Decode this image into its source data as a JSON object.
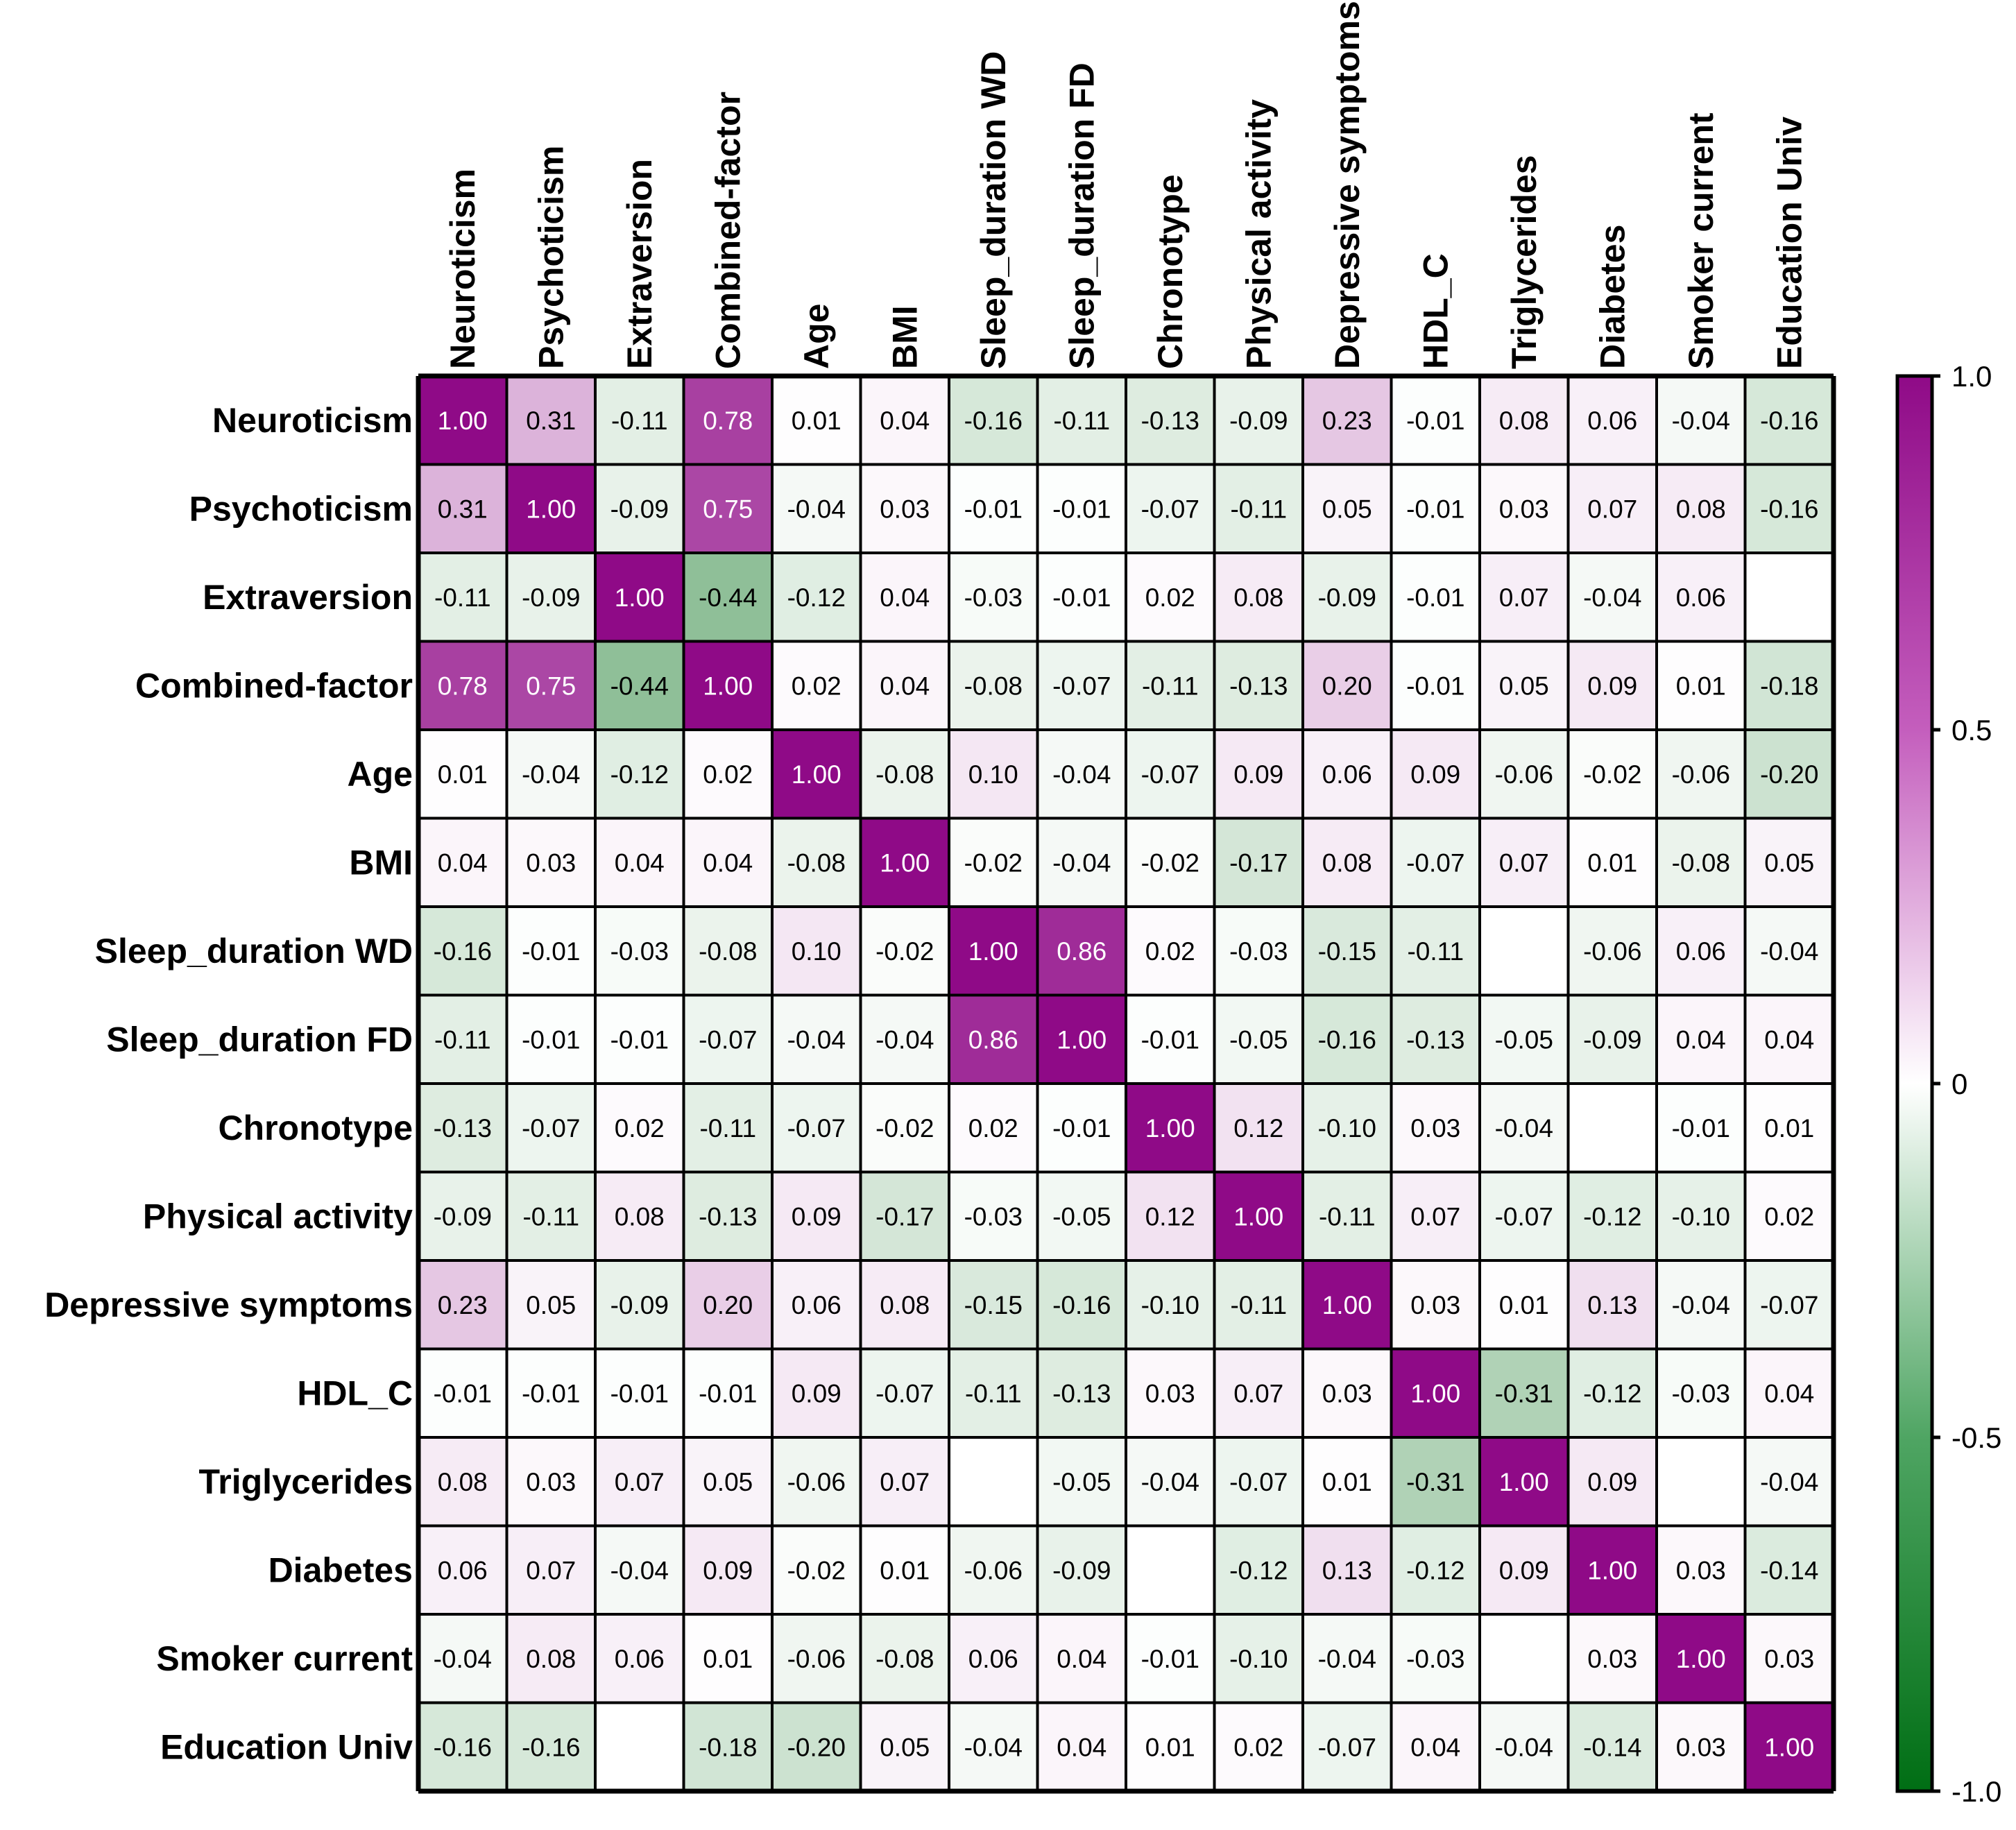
{
  "chart_data": {
    "type": "heatmap",
    "title": "",
    "variables": [
      "Neuroticism",
      "Psychoticism",
      "Extraversion",
      "Combined-factor",
      "Age",
      "BMI",
      "Sleep_duration WD",
      "Sleep_duration FD",
      "Chronotype",
      "Physical activity",
      "Depressive symptoms",
      "HDL_C",
      "Triglycerides",
      "Diabetes",
      "Smoker current",
      "Education Univ"
    ],
    "matrix": [
      [
        "1.00",
        "0.31",
        "-0.11",
        "0.78",
        "0.01",
        "0.04",
        "-0.16",
        "-0.11",
        "-0.13",
        "-0.09",
        "0.23",
        "-0.01",
        "0.08",
        "0.06",
        "-0.04",
        "-0.16"
      ],
      [
        "0.31",
        "1.00",
        "-0.09",
        "0.75",
        "-0.04",
        "0.03",
        "-0.01",
        "-0.01",
        "-0.07",
        "-0.11",
        "0.05",
        "-0.01",
        "0.03",
        "0.07",
        "0.08",
        "-0.16"
      ],
      [
        "-0.11",
        "-0.09",
        "1.00",
        "-0.44",
        "-0.12",
        "0.04",
        "-0.03",
        "-0.01",
        "0.02",
        "0.08",
        "-0.09",
        "-0.01",
        "0.07",
        "-0.04",
        "0.06",
        ""
      ],
      [
        "0.78",
        "0.75",
        "-0.44",
        "1.00",
        "0.02",
        "0.04",
        "-0.08",
        "-0.07",
        "-0.11",
        "-0.13",
        "0.20",
        "-0.01",
        "0.05",
        "0.09",
        "0.01",
        "-0.18"
      ],
      [
        "0.01",
        "-0.04",
        "-0.12",
        "0.02",
        "1.00",
        "-0.08",
        "0.10",
        "-0.04",
        "-0.07",
        "0.09",
        "0.06",
        "0.09",
        "-0.06",
        "-0.02",
        "-0.06",
        "-0.20"
      ],
      [
        "0.04",
        "0.03",
        "0.04",
        "0.04",
        "-0.08",
        "1.00",
        "-0.02",
        "-0.04",
        "-0.02",
        "-0.17",
        "0.08",
        "-0.07",
        "0.07",
        "0.01",
        "-0.08",
        "0.05"
      ],
      [
        "-0.16",
        "-0.01",
        "-0.03",
        "-0.08",
        "0.10",
        "-0.02",
        "1.00",
        "0.86",
        "0.02",
        "-0.03",
        "-0.15",
        "-0.11",
        "",
        "-0.06",
        "0.06",
        "-0.04"
      ],
      [
        "-0.11",
        "-0.01",
        "-0.01",
        "-0.07",
        "-0.04",
        "-0.04",
        "0.86",
        "1.00",
        "-0.01",
        "-0.05",
        "-0.16",
        "-0.13",
        "-0.05",
        "-0.09",
        "0.04",
        "0.04"
      ],
      [
        "-0.13",
        "-0.07",
        "0.02",
        "-0.11",
        "-0.07",
        "-0.02",
        "0.02",
        "-0.01",
        "1.00",
        "0.12",
        "-0.10",
        "0.03",
        "-0.04",
        "",
        "-0.01",
        "0.01"
      ],
      [
        "-0.09",
        "-0.11",
        "0.08",
        "-0.13",
        "0.09",
        "-0.17",
        "-0.03",
        "-0.05",
        "0.12",
        "1.00",
        "-0.11",
        "0.07",
        "-0.07",
        "-0.12",
        "-0.10",
        "0.02"
      ],
      [
        "0.23",
        "0.05",
        "-0.09",
        "0.20",
        "0.06",
        "0.08",
        "-0.15",
        "-0.16",
        "-0.10",
        "-0.11",
        "1.00",
        "0.03",
        "0.01",
        "0.13",
        "-0.04",
        "-0.07"
      ],
      [
        "-0.01",
        "-0.01",
        "-0.01",
        "-0.01",
        "0.09",
        "-0.07",
        "-0.11",
        "-0.13",
        "0.03",
        "0.07",
        "0.03",
        "1.00",
        "-0.31",
        "-0.12",
        "-0.03",
        "0.04"
      ],
      [
        "0.08",
        "0.03",
        "0.07",
        "0.05",
        "-0.06",
        "0.07",
        "",
        "-0.05",
        "-0.04",
        "-0.07",
        "0.01",
        "-0.31",
        "1.00",
        "0.09",
        "",
        "-0.04"
      ],
      [
        "0.06",
        "0.07",
        "-0.04",
        "0.09",
        "-0.02",
        "0.01",
        "-0.06",
        "-0.09",
        "",
        "-0.12",
        "0.13",
        "-0.12",
        "0.09",
        "1.00",
        "0.03",
        "-0.14"
      ],
      [
        "-0.04",
        "0.08",
        "0.06",
        "0.01",
        "-0.06",
        "-0.08",
        "0.06",
        "0.04",
        "-0.01",
        "-0.10",
        "-0.04",
        "-0.03",
        "",
        "0.03",
        "1.00",
        "0.03"
      ],
      [
        "-0.16",
        "-0.16",
        "",
        "-0.18",
        "-0.20",
        "0.05",
        "-0.04",
        "0.04",
        "0.01",
        "0.02",
        "-0.07",
        "0.04",
        "-0.04",
        "-0.14",
        "0.03",
        "1.00"
      ]
    ],
    "colorbar": {
      "min": -1.0,
      "max": 1.0,
      "ticks": [
        1.0,
        0.5,
        0,
        -0.5,
        -1.0
      ],
      "tick_labels": [
        "1.0",
        "0.5",
        "0",
        "-0.5",
        "-1.0"
      ],
      "colors": {
        "low": "#006e14",
        "mid": "#ffffff",
        "high": "#8f0a87"
      }
    }
  }
}
